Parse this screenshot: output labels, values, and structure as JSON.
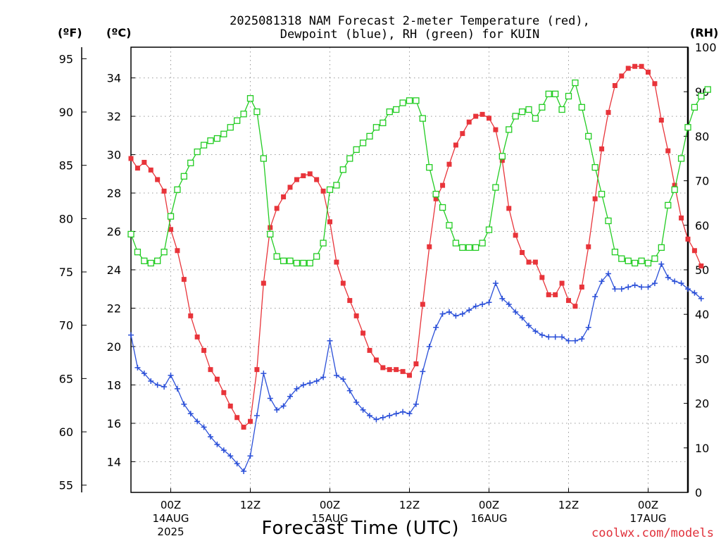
{
  "chart_data": {
    "type": "line",
    "title_lines": [
      "2025081318 NAM Forecast 2-meter Temperature (red),",
      "Dewpoint (blue), RH (green) for KUIN"
    ],
    "units": {
      "fahrenheit": "(ºF)",
      "celsius": "(ºC)",
      "rh": "(RH)"
    },
    "xlabel": "Forecast Time (UTC)",
    "credit": "coolwx.com/models",
    "x_start_hour": 18,
    "x_range_hours": [
      0,
      84
    ],
    "x_ticks": [
      {
        "hour": 6,
        "label": "00Z",
        "date": "14AUG",
        "year": "2025"
      },
      {
        "hour": 18,
        "label": "12Z",
        "date": "",
        "year": ""
      },
      {
        "hour": 30,
        "label": "00Z",
        "date": "15AUG",
        "year": ""
      },
      {
        "hour": 42,
        "label": "12Z",
        "date": "",
        "year": ""
      },
      {
        "hour": 54,
        "label": "00Z",
        "date": "16AUG",
        "year": ""
      },
      {
        "hour": 66,
        "label": "12Z",
        "date": "",
        "year": ""
      },
      {
        "hour": 78,
        "label": "00Z",
        "date": "17AUG",
        "year": ""
      }
    ],
    "y_celsius": {
      "range": [
        12.4,
        35.6
      ],
      "ticks": [
        14,
        16,
        18,
        20,
        22,
        24,
        26,
        28,
        30,
        32,
        34
      ]
    },
    "y_fahrenheit": {
      "ticks": [
        55,
        60,
        65,
        70,
        75,
        80,
        85,
        90,
        95
      ]
    },
    "y_rh": {
      "range": [
        0,
        100
      ],
      "ticks": [
        0,
        10,
        20,
        30,
        40,
        50,
        60,
        70,
        80,
        90,
        100
      ]
    },
    "grid": true,
    "series": [
      {
        "name": "Temperature",
        "color": "#e8343a",
        "marker": "filled-square",
        "axis": "celsius",
        "values": [
          29.8,
          29.3,
          29.6,
          29.2,
          28.7,
          28.1,
          26.1,
          25.0,
          23.5,
          21.6,
          20.5,
          19.8,
          18.8,
          18.3,
          17.6,
          16.9,
          16.3,
          15.8,
          16.1,
          18.8,
          23.3,
          26.2,
          27.2,
          27.8,
          28.3,
          28.7,
          28.9,
          29.0,
          28.7,
          28.1,
          26.5,
          24.4,
          23.3,
          22.4,
          21.6,
          20.7,
          19.8,
          19.3,
          18.9,
          18.8,
          18.8,
          18.7,
          18.5,
          19.1,
          22.2,
          25.2,
          27.7,
          28.4,
          29.5,
          30.5,
          31.1,
          31.7,
          32.0,
          32.1,
          31.9,
          31.3,
          29.7,
          27.2,
          25.8,
          24.9,
          24.4,
          24.4,
          23.6,
          22.7,
          22.7,
          23.3,
          22.4,
          22.1,
          23.1,
          25.2,
          27.7,
          30.3,
          32.2,
          33.6,
          34.1,
          34.5,
          34.6,
          34.6,
          34.3,
          33.7,
          31.8,
          30.2,
          28.4,
          26.7,
          25.6,
          25.0,
          24.2
        ]
      },
      {
        "name": "Dewpoint",
        "color": "#2a4fd8",
        "marker": "plus",
        "axis": "celsius",
        "values": [
          20.6,
          18.9,
          18.6,
          18.2,
          18.0,
          17.9,
          18.5,
          17.8,
          17.0,
          16.5,
          16.1,
          15.8,
          15.3,
          14.9,
          14.6,
          14.3,
          13.9,
          13.5,
          14.3,
          16.4,
          18.6,
          17.3,
          16.7,
          16.9,
          17.4,
          17.8,
          18.0,
          18.1,
          18.2,
          18.4,
          20.3,
          18.5,
          18.3,
          17.7,
          17.1,
          16.7,
          16.4,
          16.2,
          16.3,
          16.4,
          16.5,
          16.6,
          16.5,
          17.0,
          18.7,
          20.0,
          21.0,
          21.7,
          21.8,
          21.6,
          21.7,
          21.9,
          22.1,
          22.2,
          22.3,
          23.3,
          22.5,
          22.2,
          21.8,
          21.5,
          21.1,
          20.8,
          20.6,
          20.5,
          20.5,
          20.5,
          20.3,
          20.3,
          20.4,
          21.0,
          22.6,
          23.4,
          23.8,
          23.0,
          23.0,
          23.1,
          23.2,
          23.1,
          23.1,
          23.3,
          24.3,
          23.6,
          23.4,
          23.3,
          23.0,
          22.8,
          22.5
        ]
      },
      {
        "name": "RH",
        "color": "#22cc22",
        "marker": "open-square",
        "axis": "rh",
        "values": [
          58,
          54,
          52,
          51.5,
          52,
          54,
          62,
          68,
          71,
          74,
          76.5,
          78,
          79,
          79.5,
          80.5,
          82,
          83.5,
          85,
          88.5,
          85.5,
          75,
          58,
          53,
          52,
          52,
          51.5,
          51.5,
          51.5,
          53,
          56,
          68,
          69,
          72.5,
          75,
          77,
          78.5,
          80,
          82,
          83,
          85.5,
          86,
          87.5,
          88,
          88,
          84,
          73,
          67,
          64,
          60,
          56,
          55,
          55,
          55,
          56,
          59,
          68.5,
          75.5,
          81.5,
          84.5,
          85.5,
          86,
          84,
          86.5,
          89.5,
          89.5,
          86,
          89,
          92,
          86.5,
          80,
          73,
          67,
          61,
          54,
          52.5,
          52,
          51.5,
          52,
          51.5,
          52.5,
          55,
          64.5,
          68,
          75,
          82,
          86.5,
          89,
          90.5
        ]
      }
    ]
  }
}
